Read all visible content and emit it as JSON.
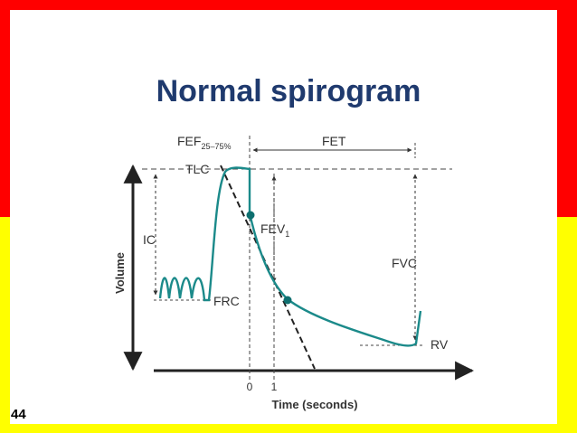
{
  "slide": {
    "title": "Normal spirogram",
    "number": "44",
    "colors": {
      "top_band": "#ff0000",
      "bottom_band": "#ffff00",
      "title": "#1f3a6e",
      "curve": "#1b8a8a",
      "marker": "#0e6f6f"
    }
  },
  "diagram": {
    "labels": {
      "fef": "FEF",
      "fef_sub": "25–75%",
      "fet": "FET",
      "tlc": "TLC",
      "ic": "IC",
      "fev": "FEV",
      "fev_sub": "1",
      "fvc": "FVC",
      "frc": "FRC",
      "rv": "RV",
      "volume_axis": "Volume",
      "time_axis": "Time (seconds)",
      "tick_0": "0",
      "tick_1": "1"
    }
  }
}
